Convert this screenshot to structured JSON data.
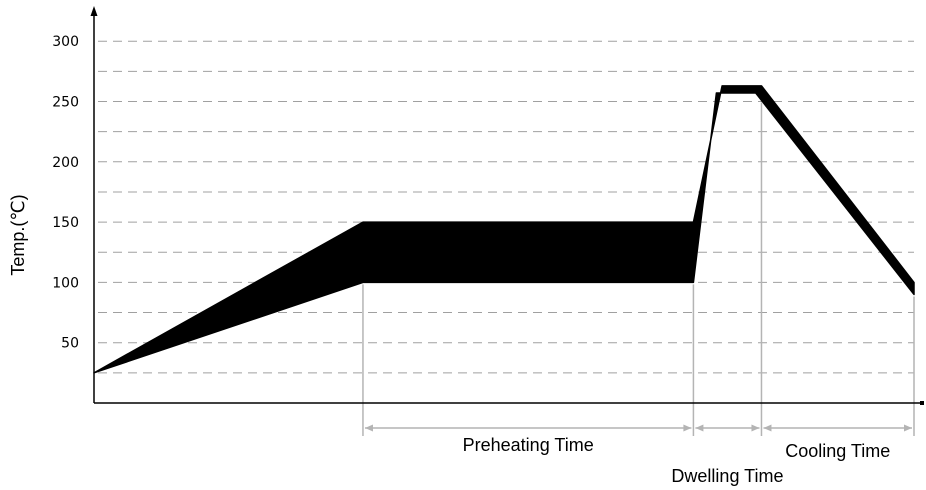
{
  "chart_data": {
    "type": "area",
    "title": "",
    "ylabel": "Temp.(℃)",
    "xlabel": "",
    "ylim": [
      0,
      300
    ],
    "y_ticks": [
      50,
      100,
      150,
      200,
      250,
      300
    ],
    "y_tick_labels": [
      "50",
      "100",
      "150",
      "200",
      "250",
      "300"
    ],
    "grid": "horizontal dashed, every 25",
    "band": {
      "upper": [
        [
          0,
          25
        ],
        [
          32.8,
          150
        ],
        [
          73.1,
          150
        ],
        [
          76.6,
          263
        ],
        [
          81.4,
          263
        ],
        [
          100,
          100
        ]
      ],
      "lower": [
        [
          0,
          25
        ],
        [
          32.8,
          100
        ],
        [
          73.1,
          100
        ],
        [
          75.9,
          257
        ],
        [
          80.7,
          257
        ],
        [
          100,
          90
        ]
      ]
    },
    "phases": [
      {
        "label": "Preheating Time",
        "start": 32.8,
        "end": 73.1
      },
      {
        "label": "Dwelling Time",
        "start": 73.1,
        "end": 81.4
      },
      {
        "label": "Cooling Time",
        "start": 81.4,
        "end": 100
      }
    ]
  },
  "colors": {
    "band": "#000000",
    "grid": "#a0a0a0",
    "guide": "#b4b4b4",
    "axis": "#000000"
  }
}
